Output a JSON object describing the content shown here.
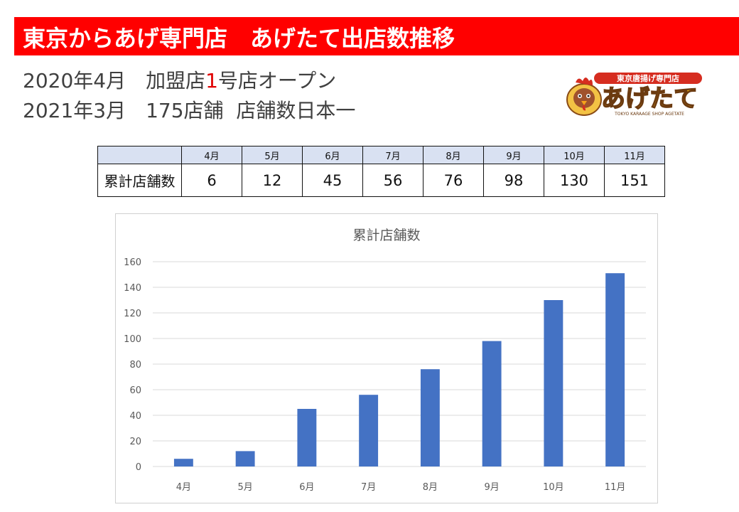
{
  "banner": {
    "text": "東京からあげ専門店　あげたて出店数推移",
    "color": "#ff0000"
  },
  "info": {
    "line1_pre": "2020年4月　加盟店",
    "line1_highlight": "1",
    "line1_post": "号店オープン",
    "line2": "2021年3月　175店舗  店舗数日本一"
  },
  "logo": {
    "top_text": "東京唐揚げ専門店",
    "main_text": "あげたて",
    "sub_text": "TOKYO KARAAGE SHOP AGETATE"
  },
  "table": {
    "row_label": "累計店舗数",
    "headers": [
      "4月",
      "5月",
      "6月",
      "7月",
      "8月",
      "9月",
      "10月",
      "11月"
    ],
    "values": [
      "6",
      "12",
      "45",
      "56",
      "76",
      "98",
      "130",
      "151"
    ]
  },
  "chart_data": {
    "type": "bar",
    "title": "累計店舗数",
    "categories": [
      "4月",
      "5月",
      "6月",
      "7月",
      "8月",
      "9月",
      "10月",
      "11月"
    ],
    "values": [
      6,
      12,
      45,
      56,
      76,
      98,
      130,
      151
    ],
    "xlabel": "",
    "ylabel": "",
    "ylim": [
      0,
      160
    ],
    "yticks": [
      0,
      20,
      40,
      60,
      80,
      100,
      120,
      140,
      160
    ],
    "grid": true,
    "legend": "none",
    "bar_color": "#4472c4"
  }
}
